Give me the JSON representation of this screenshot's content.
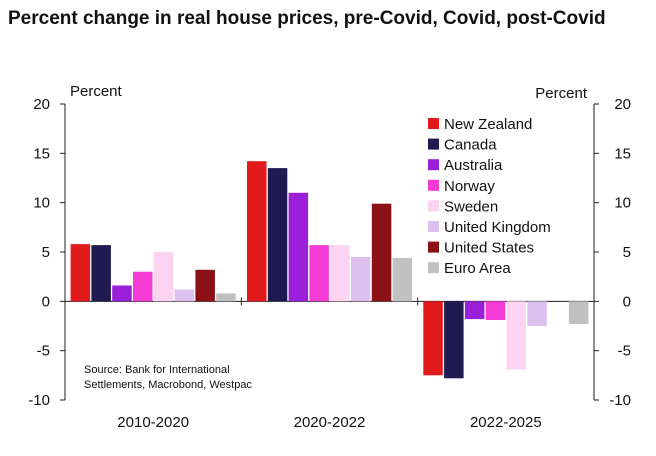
{
  "chart_data": {
    "type": "bar",
    "title": "Percent change in real house prices, pre-Covid, Covid, post-Covid",
    "ylabel_left": "Percent",
    "ylabel_right": "Percent",
    "ylim": [
      -10,
      20
    ],
    "yticks": [
      20,
      15,
      10,
      5,
      0,
      -5,
      -10
    ],
    "ytick_labels": [
      "20",
      "15",
      "10",
      "5",
      "0",
      "-5",
      "-10"
    ],
    "categories": [
      "2010-2020",
      "2020-2022",
      "2022-2025"
    ],
    "series": [
      {
        "name": "New Zealand",
        "color": "#e31a1c",
        "values": [
          5.8,
          14.2,
          -7.5
        ]
      },
      {
        "name": "Canada",
        "color": "#1f1a4f",
        "values": [
          5.7,
          13.5,
          -7.8
        ]
      },
      {
        "name": "Australia",
        "color": "#9b1fd9",
        "values": [
          1.6,
          11.0,
          -1.8
        ]
      },
      {
        "name": "Norway",
        "color": "#f53bd6",
        "values": [
          3.0,
          5.7,
          -1.9
        ]
      },
      {
        "name": "Sweden",
        "color": "#fcd4f2",
        "values": [
          5.0,
          5.7,
          -6.9
        ]
      },
      {
        "name": "United Kingdom",
        "color": "#dcc1ef",
        "values": [
          1.2,
          4.5,
          -2.5
        ]
      },
      {
        "name": "United States",
        "color": "#8b1116",
        "values": [
          3.2,
          9.9,
          0
        ]
      },
      {
        "name": "Euro Area",
        "color": "#c1c1c1",
        "values": [
          0.8,
          4.4,
          -2.3
        ]
      }
    ],
    "legend_position": "top-right",
    "grid": false,
    "annotation": "Source: Bank for International Settlements, Macrobond, Westpac"
  }
}
